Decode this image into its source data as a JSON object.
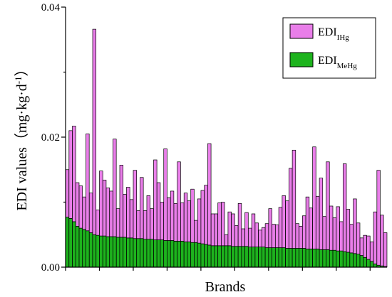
{
  "chart_data": {
    "type": "bar",
    "stacked": true,
    "xlabel": "Brands",
    "ylabel": "EDI values（mg·kg·d",
    "ylabel_sup": "-1",
    "ylabel_close": "）",
    "ylim": [
      0,
      0.04
    ],
    "yticks": [
      "0.00",
      "0.02",
      "0.04"
    ],
    "ytick_values": [
      0,
      0.02,
      0.04
    ],
    "legend_position": "top-right",
    "series": [
      {
        "name": "EDI",
        "name_sub": "MeHg",
        "color": "#1db31d",
        "values": [
          0.0077,
          0.0075,
          0.007,
          0.0063,
          0.006,
          0.0058,
          0.0056,
          0.0053,
          0.005,
          0.0049,
          0.0048,
          0.0048,
          0.0047,
          0.0047,
          0.0047,
          0.0046,
          0.0046,
          0.0046,
          0.0045,
          0.0045,
          0.0044,
          0.0044,
          0.0044,
          0.0043,
          0.0043,
          0.0043,
          0.0042,
          0.0042,
          0.0042,
          0.0041,
          0.0041,
          0.0041,
          0.004,
          0.004,
          0.004,
          0.0039,
          0.0039,
          0.0038,
          0.0038,
          0.0037,
          0.0036,
          0.0035,
          0.0034,
          0.0033,
          0.0033,
          0.0033,
          0.0033,
          0.0033,
          0.0033,
          0.0032,
          0.0032,
          0.0032,
          0.0032,
          0.0032,
          0.0031,
          0.0031,
          0.0031,
          0.0031,
          0.0031,
          0.003,
          0.003,
          0.003,
          0.003,
          0.003,
          0.003,
          0.0029,
          0.0029,
          0.0029,
          0.0029,
          0.0029,
          0.0029,
          0.0028,
          0.0028,
          0.0028,
          0.0028,
          0.0027,
          0.0027,
          0.0027,
          0.0026,
          0.0026,
          0.0025,
          0.0025,
          0.0024,
          0.0023,
          0.0022,
          0.0021,
          0.002,
          0.0018,
          0.0015,
          0.0012,
          0.0009,
          0.0005,
          0.0003,
          0.0002,
          0.0001
        ]
      },
      {
        "name": "EDI",
        "name_sub": "IHg",
        "color": "#e97ee9",
        "values": [
          0.0073,
          0.0135,
          0.0147,
          0.0067,
          0.0065,
          0.005,
          0.0149,
          0.0061,
          0.0316,
          0.0039,
          0.01,
          0.0086,
          0.0075,
          0.007,
          0.015,
          0.0044,
          0.0111,
          0.0066,
          0.0078,
          0.0059,
          0.0105,
          0.0043,
          0.0094,
          0.0044,
          0.0067,
          0.0047,
          0.0123,
          0.0088,
          0.0058,
          0.0141,
          0.0066,
          0.0076,
          0.0058,
          0.0122,
          0.0059,
          0.0075,
          0.0063,
          0.0082,
          0.0034,
          0.0068,
          0.0082,
          0.0091,
          0.0156,
          0.0049,
          0.0049,
          0.0066,
          0.0067,
          0.0017,
          0.0052,
          0.005,
          0.0032,
          0.0066,
          0.0027,
          0.0052,
          0.0029,
          0.0051,
          0.0037,
          0.0026,
          0.003,
          0.0037,
          0.006,
          0.0036,
          0.0035,
          0.0062,
          0.008,
          0.0073,
          0.0123,
          0.0151,
          0.0038,
          0.0034,
          0.005,
          0.008,
          0.0063,
          0.0157,
          0.0081,
          0.011,
          0.0051,
          0.0135,
          0.0068,
          0.005,
          0.0068,
          0.0045,
          0.0135,
          0.0066,
          0.0044,
          0.0084,
          0.0048,
          0.0027,
          0.0034,
          0.0036,
          0.003,
          0.008,
          0.0146,
          0.0078,
          0.0052
        ]
      }
    ]
  }
}
